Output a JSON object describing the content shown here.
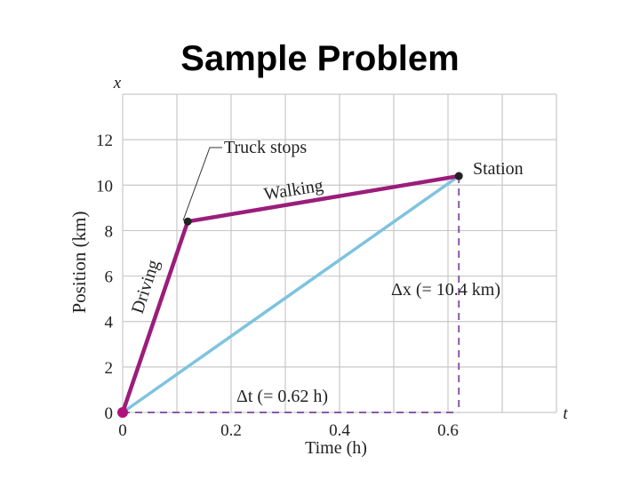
{
  "slide": {
    "title": "Sample Problem"
  },
  "chart_data": {
    "type": "line",
    "title": "",
    "xlabel": "Time (h)",
    "ylabel": "Position (km)",
    "x_axis_symbol": "x",
    "t_axis_symbol": "t",
    "xlim": [
      0,
      0.8
    ],
    "ylim": [
      0,
      14
    ],
    "x_ticks": [
      {
        "value": 0,
        "label": "0"
      },
      {
        "value": 0.2,
        "label": "0.2"
      },
      {
        "value": 0.4,
        "label": "0.4"
      },
      {
        "value": 0.6,
        "label": "0.6"
      }
    ],
    "y_ticks": [
      {
        "value": 0,
        "label": "0"
      },
      {
        "value": 2,
        "label": "2"
      },
      {
        "value": 4,
        "label": "4"
      },
      {
        "value": 6,
        "label": "6"
      },
      {
        "value": 8,
        "label": "8"
      },
      {
        "value": 10,
        "label": "10"
      },
      {
        "value": 12,
        "label": "12"
      }
    ],
    "grid": true,
    "grid_x_step": 0.1,
    "grid_y_step": 2,
    "series": [
      {
        "name": "",
        "color": "#9b1d7a",
        "x": [
          0,
          0.12,
          0.62
        ],
        "y": [
          0,
          8.4,
          10.4
        ]
      },
      {
        "name": "",
        "color": "#7ec3df",
        "x": [
          0,
          0.62
        ],
        "y": [
          0,
          10.4
        ]
      }
    ],
    "points": [
      {
        "x": 0,
        "y": 0,
        "color": "#b0127a"
      },
      {
        "x": 0.12,
        "y": 8.4,
        "color": "#222222"
      },
      {
        "x": 0.62,
        "y": 10.4,
        "color": "#222222"
      }
    ],
    "guide_color": "#8a5aa6",
    "annotations": {
      "truck_stops": "Truck stops",
      "walking": "Walking",
      "driving": "Driving",
      "station": "Station",
      "delta_x": "Δx (= 10.4 km)",
      "delta_t": "Δt (= 0.62 h)"
    }
  }
}
